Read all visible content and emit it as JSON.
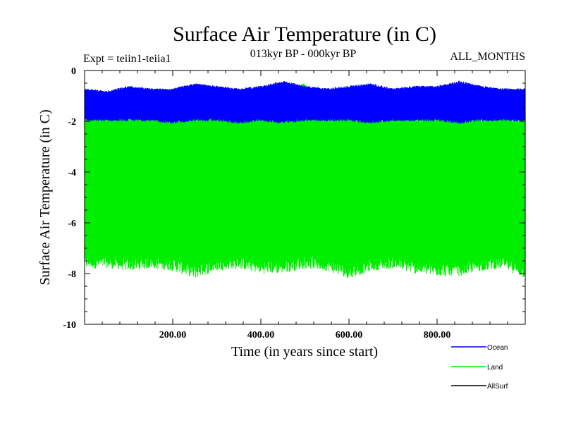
{
  "chart_data": {
    "type": "line",
    "title": "Surface Air Temperature (in C)",
    "subtitle_left": "Expt = teiin1-teiia1",
    "subtitle_center": "013kyr BP - 000kyr BP",
    "subtitle_right": "ALL_MONTHS",
    "xlabel": "Time (in years since start)",
    "ylabel": "Surface Air Temperature (in C)",
    "xlim": [
      0,
      1000
    ],
    "ylim": [
      -10,
      0
    ],
    "x_ticks": [
      200,
      400,
      600,
      800
    ],
    "x_tick_labels": [
      "200.00",
      "400.00",
      "600.00",
      "800.00"
    ],
    "y_ticks": [
      0,
      -2,
      -4,
      -6,
      -8,
      -10
    ],
    "y_tick_labels": [
      "0",
      "-2",
      "-4",
      "-6",
      "-8",
      "-10"
    ],
    "legend_position": "bottom-right, below plot",
    "series": [
      {
        "name": "Ocean",
        "color": "#0000ff",
        "x": [
          0,
          50,
          100,
          150,
          200,
          250,
          300,
          350,
          400,
          450,
          500,
          550,
          600,
          650,
          700,
          750,
          800,
          850,
          900,
          950,
          1000
        ],
        "y_max": [
          -0.7,
          -0.8,
          -0.6,
          -0.7,
          -0.7,
          -0.5,
          -0.6,
          -0.7,
          -0.6,
          -0.4,
          -0.6,
          -0.7,
          -0.6,
          -0.5,
          -0.7,
          -0.6,
          -0.6,
          -0.4,
          -0.6,
          -0.7,
          -0.7
        ],
        "y_min": [
          -2.0,
          -2.0,
          -2.0,
          -2.0,
          -2.1,
          -2.0,
          -2.0,
          -2.1,
          -2.0,
          -2.1,
          -2.0,
          -2.0,
          -2.0,
          -2.1,
          -2.0,
          -2.0,
          -2.0,
          -2.1,
          -2.0,
          -2.0,
          -2.0
        ]
      },
      {
        "name": "Land",
        "color": "#00ee00",
        "x": [
          0,
          50,
          100,
          150,
          200,
          250,
          300,
          350,
          400,
          450,
          500,
          550,
          600,
          650,
          700,
          750,
          800,
          850,
          900,
          950,
          1000
        ],
        "y_max": [
          -1.7,
          -1.6,
          -1.7,
          -1.6,
          -1.7,
          -0.5,
          -1.6,
          -1.7,
          -1.6,
          -0.6,
          -0.5,
          -1.7,
          -1.6,
          -1.7,
          -1.6,
          -1.7,
          -1.6,
          -1.7,
          -1.7,
          -1.6,
          -1.7
        ],
        "y_min": [
          -7.8,
          -7.8,
          -7.9,
          -7.8,
          -7.9,
          -8.2,
          -7.9,
          -7.8,
          -8.0,
          -8.0,
          -7.8,
          -7.9,
          -8.2,
          -7.9,
          -7.8,
          -8.0,
          -8.1,
          -8.1,
          -7.9,
          -7.8,
          -8.2
        ]
      },
      {
        "name": "AllSurf",
        "color": "#000000",
        "x": [],
        "y_max": [],
        "y_min": []
      }
    ]
  }
}
